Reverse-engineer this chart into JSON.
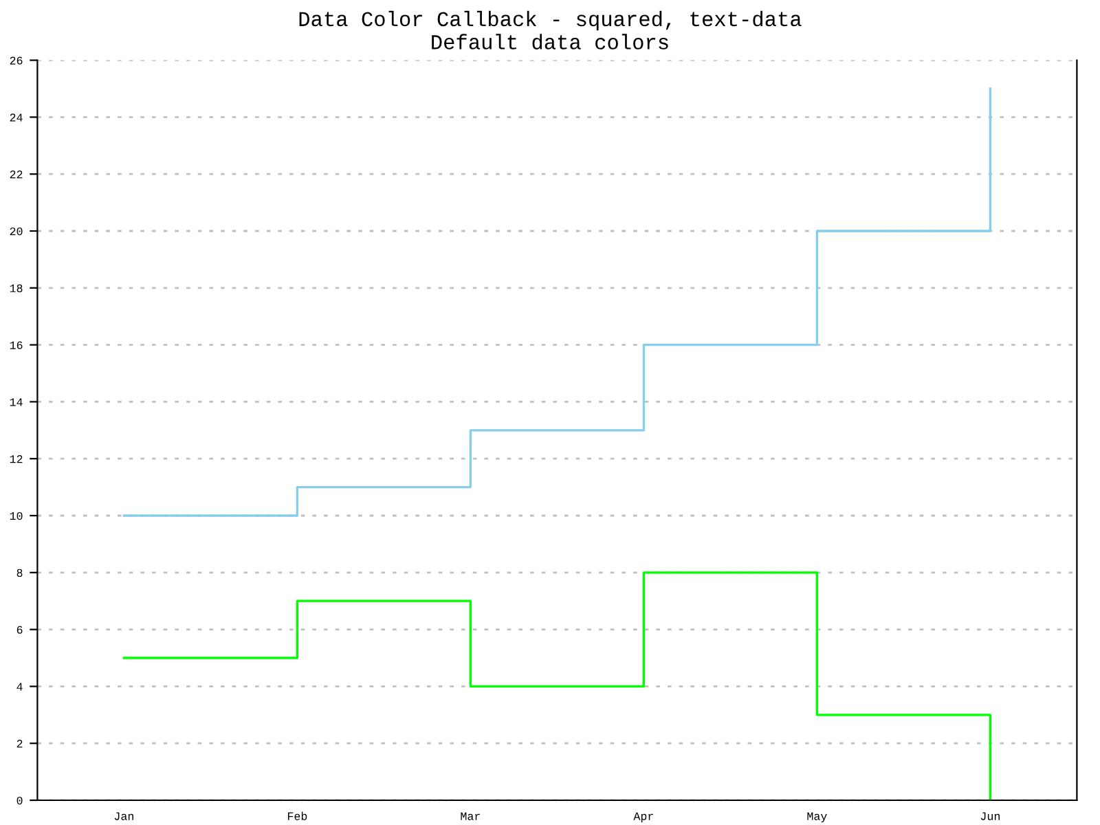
{
  "chart_data": {
    "type": "step",
    "title": "Data Color Callback - squared, text-data",
    "subtitle": "Default data colors",
    "categories": [
      "Jan",
      "Feb",
      "Mar",
      "Apr",
      "May",
      "Jun"
    ],
    "series": [
      {
        "color": "#87ceeb",
        "values": [
          10,
          11,
          13,
          16,
          20,
          25
        ]
      },
      {
        "color": "#00ff00",
        "values": [
          5,
          7,
          4,
          8,
          3,
          0
        ]
      }
    ],
    "ylim": [
      0,
      26
    ],
    "yticks": [
      0,
      2,
      4,
      6,
      8,
      10,
      12,
      14,
      16,
      18,
      20,
      22,
      24,
      26
    ],
    "grid": "y",
    "legend": false,
    "line_style": "solid"
  }
}
